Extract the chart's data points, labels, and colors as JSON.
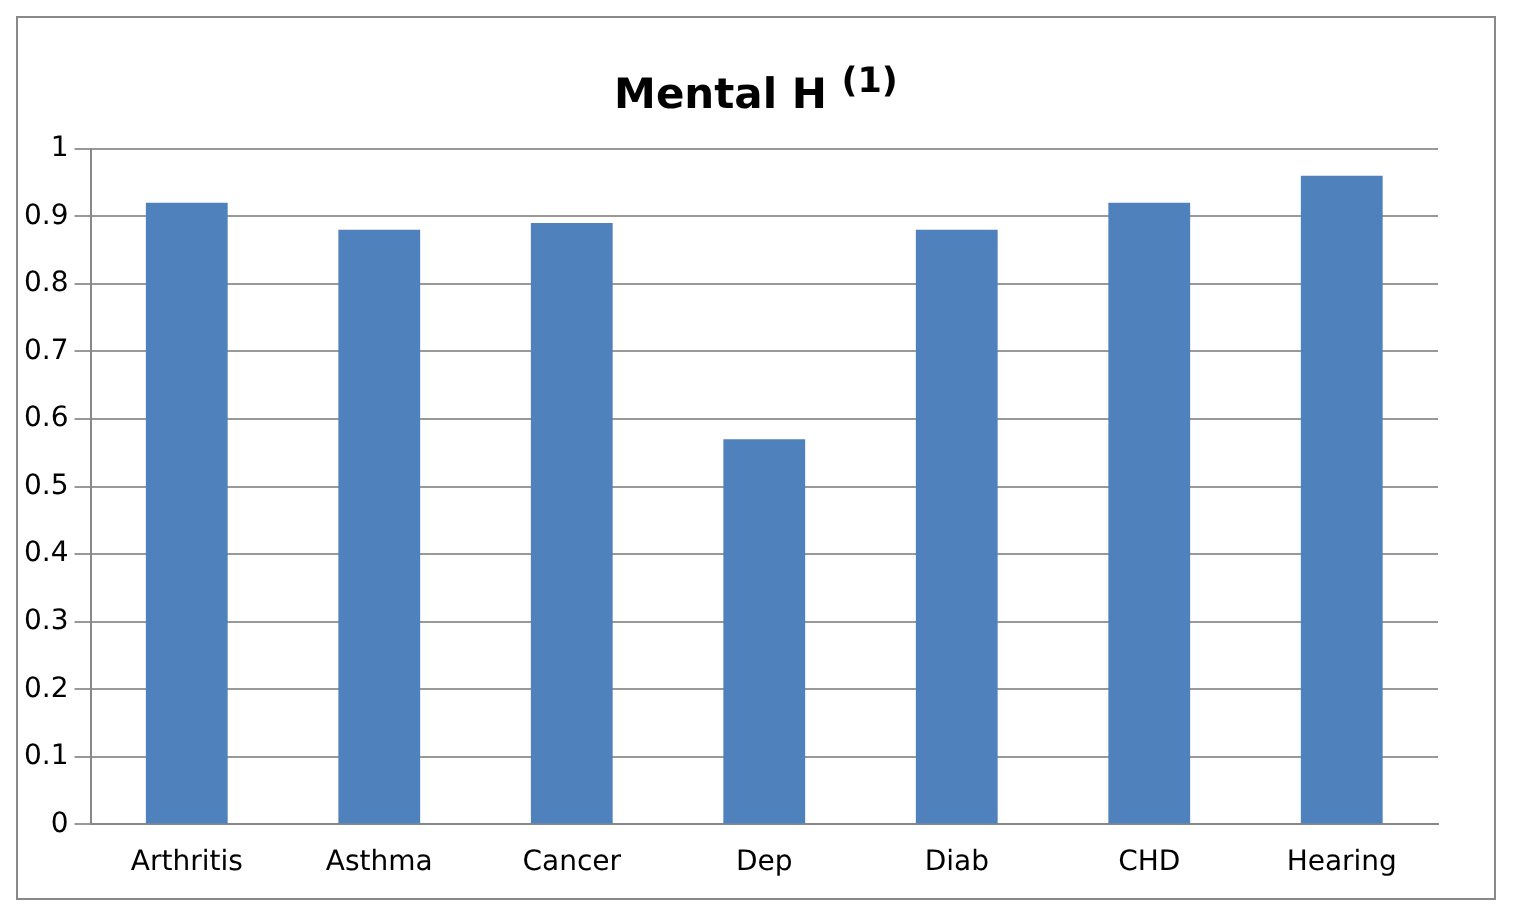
{
  "chart_data": {
    "type": "bar",
    "title": "Mental H $^{(1)}$",
    "categories": [
      "Arthritis",
      "Asthma",
      "Cancer",
      "Dep",
      "Diab",
      "CHD",
      "Hearing"
    ],
    "values": [
      0.92,
      0.88,
      0.89,
      0.57,
      0.88,
      0.92,
      0.96
    ],
    "color": "#4f81bd",
    "ylim": [
      0,
      1
    ],
    "yticks": [
      0,
      0.1,
      0.2,
      0.3,
      0.4,
      0.5,
      0.6,
      0.7,
      0.8,
      0.9,
      1
    ],
    "grid": "y"
  }
}
